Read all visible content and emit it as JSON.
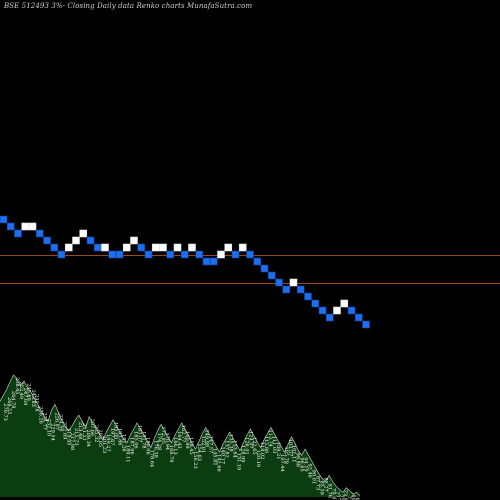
{
  "title": "BSE 512493 3%-  Closing Daily data  Renko  charts MunafaSutra.com",
  "colors": {
    "background": "#000000",
    "brick_up": "#ffffff",
    "brick_down": "#1e6ff0",
    "brick_down_border": "#0b3f99",
    "reference_line": "#c8641e",
    "volume_fill": "#0c3d10",
    "volume_stroke": "#ffffff"
  },
  "chart_data": [
    {
      "type": "renko",
      "description_kind": "price bricks",
      "bricks": [
        {
          "level": 0,
          "dir": "down"
        },
        {
          "level": -1,
          "dir": "down"
        },
        {
          "level": -2,
          "dir": "down"
        },
        {
          "level": -1,
          "dir": "up"
        },
        {
          "level": -1,
          "dir": "up"
        },
        {
          "level": -2,
          "dir": "down"
        },
        {
          "level": -3,
          "dir": "down"
        },
        {
          "level": -4,
          "dir": "down"
        },
        {
          "level": -5,
          "dir": "down"
        },
        {
          "level": -4,
          "dir": "up"
        },
        {
          "level": -3,
          "dir": "up"
        },
        {
          "level": -2,
          "dir": "up"
        },
        {
          "level": -3,
          "dir": "down"
        },
        {
          "level": -4,
          "dir": "down"
        },
        {
          "level": -4,
          "dir": "up"
        },
        {
          "level": -5,
          "dir": "down"
        },
        {
          "level": -5,
          "dir": "down"
        },
        {
          "level": -4,
          "dir": "up"
        },
        {
          "level": -3,
          "dir": "up"
        },
        {
          "level": -4,
          "dir": "down"
        },
        {
          "level": -5,
          "dir": "down"
        },
        {
          "level": -4,
          "dir": "up"
        },
        {
          "level": -4,
          "dir": "up"
        },
        {
          "level": -5,
          "dir": "down"
        },
        {
          "level": -4,
          "dir": "up"
        },
        {
          "level": -5,
          "dir": "down"
        },
        {
          "level": -4,
          "dir": "up"
        },
        {
          "level": -5,
          "dir": "down"
        },
        {
          "level": -6,
          "dir": "down"
        },
        {
          "level": -6,
          "dir": "down"
        },
        {
          "level": -5,
          "dir": "up"
        },
        {
          "level": -4,
          "dir": "up"
        },
        {
          "level": -5,
          "dir": "down"
        },
        {
          "level": -4,
          "dir": "up"
        },
        {
          "level": -5,
          "dir": "down"
        },
        {
          "level": -6,
          "dir": "down"
        },
        {
          "level": -7,
          "dir": "down"
        },
        {
          "level": -8,
          "dir": "down"
        },
        {
          "level": -9,
          "dir": "down"
        },
        {
          "level": -10,
          "dir": "down"
        },
        {
          "level": -9,
          "dir": "up"
        },
        {
          "level": -10,
          "dir": "down"
        },
        {
          "level": -11,
          "dir": "down"
        },
        {
          "level": -12,
          "dir": "down"
        },
        {
          "level": -13,
          "dir": "down"
        },
        {
          "level": -14,
          "dir": "down"
        },
        {
          "level": -13,
          "dir": "up"
        },
        {
          "level": -12,
          "dir": "up"
        },
        {
          "level": -13,
          "dir": "down"
        },
        {
          "level": -14,
          "dir": "down"
        },
        {
          "level": -15,
          "dir": "down"
        }
      ],
      "reference_levels": [
        -5,
        -9
      ]
    },
    {
      "type": "area",
      "description_kind": "volume / price history",
      "values": [
        62,
        66,
        70,
        75,
        79,
        76,
        72,
        75,
        71,
        68,
        64,
        60,
        56,
        52,
        49,
        56,
        60,
        55,
        50,
        46,
        43,
        46,
        50,
        53,
        49,
        45,
        52,
        48,
        45,
        41,
        37,
        42,
        46,
        50,
        46,
        42,
        38,
        35,
        40,
        44,
        48,
        44,
        40,
        36,
        32,
        38,
        43,
        47,
        43,
        39,
        35,
        40,
        44,
        48,
        44,
        40,
        35,
        31,
        36,
        41,
        45,
        41,
        37,
        33,
        29,
        34,
        38,
        42,
        38,
        34,
        30,
        35,
        40,
        44,
        40,
        36,
        32,
        37,
        41,
        45,
        41,
        37,
        33,
        29,
        34,
        39,
        35,
        30,
        27,
        31,
        27,
        23,
        19,
        15,
        12,
        10,
        14,
        10,
        7,
        5,
        3,
        6,
        4,
        2,
        3,
        1
      ]
    }
  ],
  "tick_labels": [
    "270.73",
    "268.55",
    "264.78",
    "258.45",
    "252.49",
    "247.69",
    "245.69",
    "243.83",
    "241.78",
    "236.26",
    "234.77",
    "232.10",
    "229.54",
    "226.87",
    "224.56",
    "222.69",
    "219.95",
    "217.98",
    "215.73",
    "213.48",
    "211.21",
    "209.34",
    "207.66",
    "205.32",
    "203.05",
    "201.23",
    "199.27",
    "197.67",
    "195.05",
    "193.86",
    "191.26",
    "189.11",
    "187.96",
    "185.06",
    "183.07",
    "181.78",
    "180.06",
    "178.64",
    "176.38",
    "174.28",
    "172.95",
    "170.94",
    "168.79",
    "166.13",
    "164.43",
    "162.77",
    "160.99",
    "158.45",
    "156.23",
    "154.63",
    "152.01",
    "149.98",
    "147.57",
    "145.81",
    "142.66",
    "140.17",
    "137.82",
    "135.38",
    "133.64",
    "131.19",
    "128.99",
    "126.41",
    "124.97",
    "122.65",
    "120.19",
    "118.02",
    "115.86",
    "113.74",
    "111.03",
    "109.21",
    "107.44",
    "105.78",
    "103.57",
    "101.11",
    "98.88",
    "96.65",
    "94.19",
    "92.46",
    "90.01",
    "87.73",
    "85.59",
    "83.27",
    "81.76",
    "79.41",
    "77.22",
    "75.36",
    "73.96",
    "71.56",
    "69.99",
    "68.14"
  ]
}
